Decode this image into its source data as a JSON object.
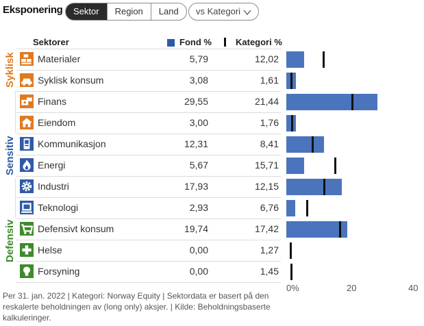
{
  "header": {
    "title": "Eksponering",
    "tabs": [
      "Sektor",
      "Region",
      "Land"
    ],
    "active_tab": 0,
    "dropdown": "vs Kategori"
  },
  "columns": {
    "sector": "Sektorer",
    "fund": "Fond  %",
    "category": "Kategori  %"
  },
  "groups": [
    {
      "label": "Syklisk",
      "color": "#e07a1f"
    },
    {
      "label": "Sensitiv",
      "color": "#2e5aa8"
    },
    {
      "label": "Defensiv",
      "color": "#3f8a2a"
    }
  ],
  "rows": [
    {
      "name": "Materialer",
      "fund": "5,79",
      "category": "12,02",
      "icon": "materials-icon",
      "color": "#e07a1f"
    },
    {
      "name": "Syklisk konsum",
      "fund": "3,08",
      "category": "1,61",
      "icon": "car-icon",
      "color": "#e07a1f"
    },
    {
      "name": "Finans",
      "fund": "29,55",
      "category": "21,44",
      "icon": "finance-icon",
      "color": "#e07a1f"
    },
    {
      "name": "Eiendom",
      "fund": "3,00",
      "category": "1,76",
      "icon": "house-icon",
      "color": "#e07a1f"
    },
    {
      "name": "Kommunikasjon",
      "fund": "12,31",
      "category": "8,41",
      "icon": "phone-icon",
      "color": "#2e5aa8"
    },
    {
      "name": "Energi",
      "fund": "5,67",
      "category": "15,71",
      "icon": "flame-icon",
      "color": "#2e5aa8"
    },
    {
      "name": "Industri",
      "fund": "17,93",
      "category": "12,15",
      "icon": "gear-icon",
      "color": "#2e5aa8"
    },
    {
      "name": "Teknologi",
      "fund": "2,93",
      "category": "6,76",
      "icon": "computer-icon",
      "color": "#2e5aa8"
    },
    {
      "name": "Defensivt konsum",
      "fund": "19,74",
      "category": "17,42",
      "icon": "cart-icon",
      "color": "#3f8a2a"
    },
    {
      "name": "Helse",
      "fund": "0,00",
      "category": "1,27",
      "icon": "cross-icon",
      "color": "#3f8a2a"
    },
    {
      "name": "Forsyning",
      "fund": "0,00",
      "category": "1,45",
      "icon": "bulb-icon",
      "color": "#3f8a2a"
    }
  ],
  "chart_data": {
    "type": "bar",
    "categories": [
      "Materialer",
      "Syklisk konsum",
      "Finans",
      "Eiendom",
      "Kommunikasjon",
      "Energi",
      "Industri",
      "Teknologi",
      "Defensivt konsum",
      "Helse",
      "Forsyning"
    ],
    "series": [
      {
        "name": "Fond  %",
        "values": [
          5.79,
          3.08,
          29.55,
          3.0,
          12.31,
          5.67,
          17.93,
          2.93,
          19.74,
          0.0,
          0.0
        ]
      },
      {
        "name": "Kategori  %",
        "values": [
          12.02,
          1.61,
          21.44,
          1.76,
          8.41,
          15.71,
          12.15,
          6.76,
          17.42,
          1.27,
          1.45
        ]
      }
    ],
    "xlim": [
      0,
      40
    ],
    "ticks": [
      "0%",
      "20",
      "40"
    ]
  },
  "footnote": "Per 31. jan. 2022 | Kategori: Norway Equity | Sektordata er basert på den reskalerte beholdningen av (long only) aksjer. | Kilde: Beholdningsbaserte kalkuleringer."
}
